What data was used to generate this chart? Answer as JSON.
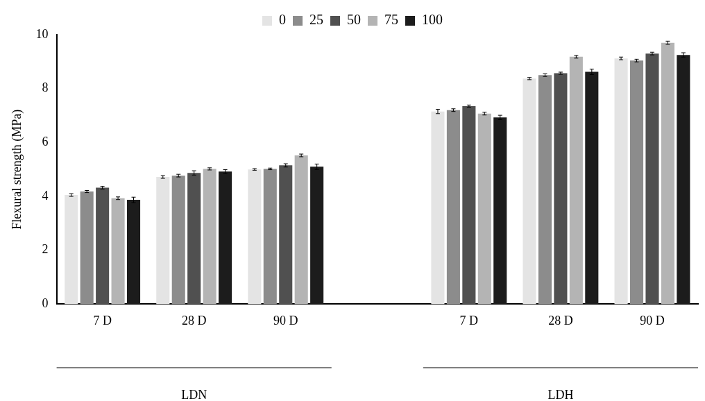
{
  "chart_data": {
    "type": "bar",
    "ylabel": "Flexural strength (MPa)",
    "categories": [
      "7 D",
      "28 D",
      "90 D",
      null,
      "7 D",
      "28 D",
      "90 D"
    ],
    "series": [
      {
        "name": "0",
        "color": "#e4e4e4",
        "values": [
          4.05,
          4.72,
          5.0,
          null,
          7.15,
          8.37,
          9.12
        ],
        "errors": [
          0.05,
          0.05,
          0.03,
          null,
          0.08,
          0.04,
          0.05
        ]
      },
      {
        "name": "25",
        "color": "#8c8c8c",
        "values": [
          4.18,
          4.77,
          5.02,
          null,
          7.2,
          8.5,
          9.04
        ],
        "errors": [
          0.04,
          0.05,
          0.03,
          null,
          0.05,
          0.05,
          0.05
        ]
      },
      {
        "name": "50",
        "color": "#505050",
        "values": [
          4.32,
          4.87,
          5.15,
          null,
          7.35,
          8.57,
          9.3
        ],
        "errors": [
          0.05,
          0.08,
          0.06,
          null,
          0.04,
          0.04,
          0.05
        ]
      },
      {
        "name": "75",
        "color": "#b4b4b4",
        "values": [
          3.93,
          5.02,
          5.52,
          null,
          7.07,
          9.18,
          9.7
        ],
        "errors": [
          0.05,
          0.04,
          0.05,
          null,
          0.05,
          0.05,
          0.06
        ]
      },
      {
        "name": "100",
        "color": "#1c1c1c",
        "values": [
          3.87,
          4.92,
          5.1,
          null,
          6.93,
          8.62,
          9.25
        ],
        "errors": [
          0.1,
          0.07,
          0.1,
          null,
          0.08,
          0.1,
          0.08
        ]
      }
    ],
    "ylim": [
      0,
      10
    ],
    "yticks": [
      0,
      2,
      4,
      6,
      8,
      10
    ],
    "grid": false,
    "legend": "top",
    "annotations": [
      "LDN",
      "LDH"
    ]
  }
}
